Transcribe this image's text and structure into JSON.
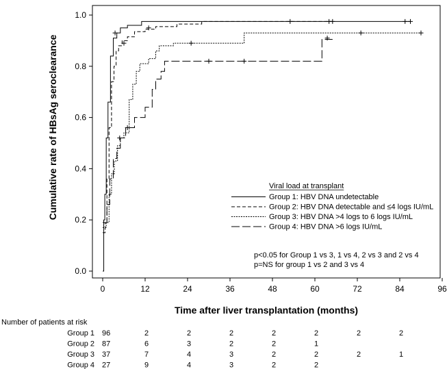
{
  "chart_data": {
    "type": "line",
    "title": "",
    "xlabel": "Time after liver transplantation (months)",
    "ylabel": "Cumulative rate of HBsAg seroclearance",
    "xlim": [
      0,
      102
    ],
    "ylim": [
      0,
      1.05
    ],
    "x_ticks": [
      0,
      12,
      24,
      36,
      48,
      60,
      72,
      84,
      96
    ],
    "y_ticks": [
      0.0,
      0.2,
      0.4,
      0.6,
      0.8,
      1.0
    ],
    "y_tick_labels": [
      "0.0",
      "0.2",
      "0.4",
      "0.6",
      "0.8",
      "1.0"
    ],
    "grid": false,
    "legend": {
      "title": "Viral load at transplant",
      "position": "right"
    },
    "series": [
      {
        "name": "Group 1: HBV DNA undetectable",
        "dash": "solid",
        "steps": [
          [
            0,
            0
          ],
          [
            0.3,
            0.2
          ],
          [
            0.6,
            0.3
          ],
          [
            1.0,
            0.52
          ],
          [
            1.5,
            0.66
          ],
          [
            2.2,
            0.84
          ],
          [
            3.0,
            0.91
          ],
          [
            4.0,
            0.93
          ],
          [
            5.0,
            0.95
          ],
          [
            7.0,
            0.96
          ],
          [
            11.0,
            0.975
          ],
          [
            87.0,
            0.975
          ]
        ],
        "censored": [
          [
            3.5,
            0.93
          ],
          [
            53.0,
            0.975
          ],
          [
            65.0,
            0.975
          ],
          [
            85.5,
            0.975
          ],
          [
            87.0,
            0.975
          ]
        ]
      },
      {
        "name": "Group 2: HBV DNA detectable and ≤4 logs IU/mL",
        "dash": "dashed",
        "steps": [
          [
            0,
            0.15
          ],
          [
            0.7,
            0.19
          ],
          [
            1.2,
            0.36
          ],
          [
            1.8,
            0.56
          ],
          [
            2.5,
            0.74
          ],
          [
            3.2,
            0.8
          ],
          [
            3.8,
            0.86
          ],
          [
            4.5,
            0.88
          ],
          [
            5.5,
            0.9
          ],
          [
            7.0,
            0.915
          ],
          [
            9.0,
            0.935
          ],
          [
            12.0,
            0.945
          ],
          [
            15.0,
            0.955
          ],
          [
            21.0,
            0.965
          ],
          [
            28.0,
            0.975
          ],
          [
            65.0,
            0.975
          ]
        ],
        "censored": [
          [
            6.0,
            0.89
          ],
          [
            13.0,
            0.95
          ],
          [
            64.0,
            0.975
          ]
        ]
      },
      {
        "name": "Group 3: HBV DNA >4 logs to 6 logs IU/mL",
        "dash": "dotted",
        "steps": [
          [
            0,
            0.17
          ],
          [
            1.0,
            0.19
          ],
          [
            1.8,
            0.3
          ],
          [
            2.5,
            0.38
          ],
          [
            3.3,
            0.43
          ],
          [
            4.2,
            0.49
          ],
          [
            5.0,
            0.52
          ],
          [
            6.0,
            0.54
          ],
          [
            7.5,
            0.67
          ],
          [
            8.5,
            0.73
          ],
          [
            9.5,
            0.78
          ],
          [
            10.5,
            0.81
          ],
          [
            13.0,
            0.83
          ],
          [
            15.0,
            0.86
          ],
          [
            16.0,
            0.88
          ],
          [
            20.0,
            0.89
          ],
          [
            40.0,
            0.93
          ],
          [
            90.0,
            0.93
          ]
        ],
        "censored": [
          [
            25.0,
            0.89
          ],
          [
            73.0,
            0.93
          ],
          [
            90.0,
            0.93
          ]
        ]
      },
      {
        "name": "Group 4: HBV DNA >6 logs IU/mL",
        "dash": "longdash",
        "steps": [
          [
            0,
            0.19
          ],
          [
            1.2,
            0.26
          ],
          [
            2.0,
            0.36
          ],
          [
            3.0,
            0.44
          ],
          [
            4.0,
            0.48
          ],
          [
            5.0,
            0.52
          ],
          [
            6.5,
            0.56
          ],
          [
            9.0,
            0.6
          ],
          [
            12.0,
            0.64
          ],
          [
            14.0,
            0.71
          ],
          [
            15.0,
            0.75
          ],
          [
            16.5,
            0.78
          ],
          [
            17.5,
            0.82
          ],
          [
            61.0,
            0.82
          ],
          [
            62.0,
            0.905
          ],
          [
            65.0,
            0.905
          ]
        ],
        "censored": [
          [
            4.8,
            0.52
          ],
          [
            7.0,
            0.56
          ],
          [
            30.0,
            0.82
          ],
          [
            40.0,
            0.82
          ],
          [
            63.5,
            0.91
          ]
        ]
      }
    ],
    "annotations": [
      "p<0.05 for Group 1 vs 3, 1 vs 4, 2 vs 3 and 2 vs 4",
      "p=NS for group 1 vs 2 and 3 vs 4"
    ],
    "risk_table": {
      "title": "Number of patients at risk",
      "rows": [
        {
          "label": "Group 1",
          "values": [
            "96",
            "2",
            "2",
            "2",
            "2",
            "2",
            "2",
            "2"
          ]
        },
        {
          "label": "Group 2",
          "values": [
            "87",
            "6",
            "3",
            "2",
            "2",
            "1"
          ]
        },
        {
          "label": "Group 3",
          "values": [
            "37",
            "7",
            "4",
            "3",
            "2",
            "2",
            "2",
            "1"
          ]
        },
        {
          "label": "Group 4",
          "values": [
            "27",
            "9",
            "4",
            "3",
            "2",
            "2"
          ]
        }
      ]
    }
  }
}
